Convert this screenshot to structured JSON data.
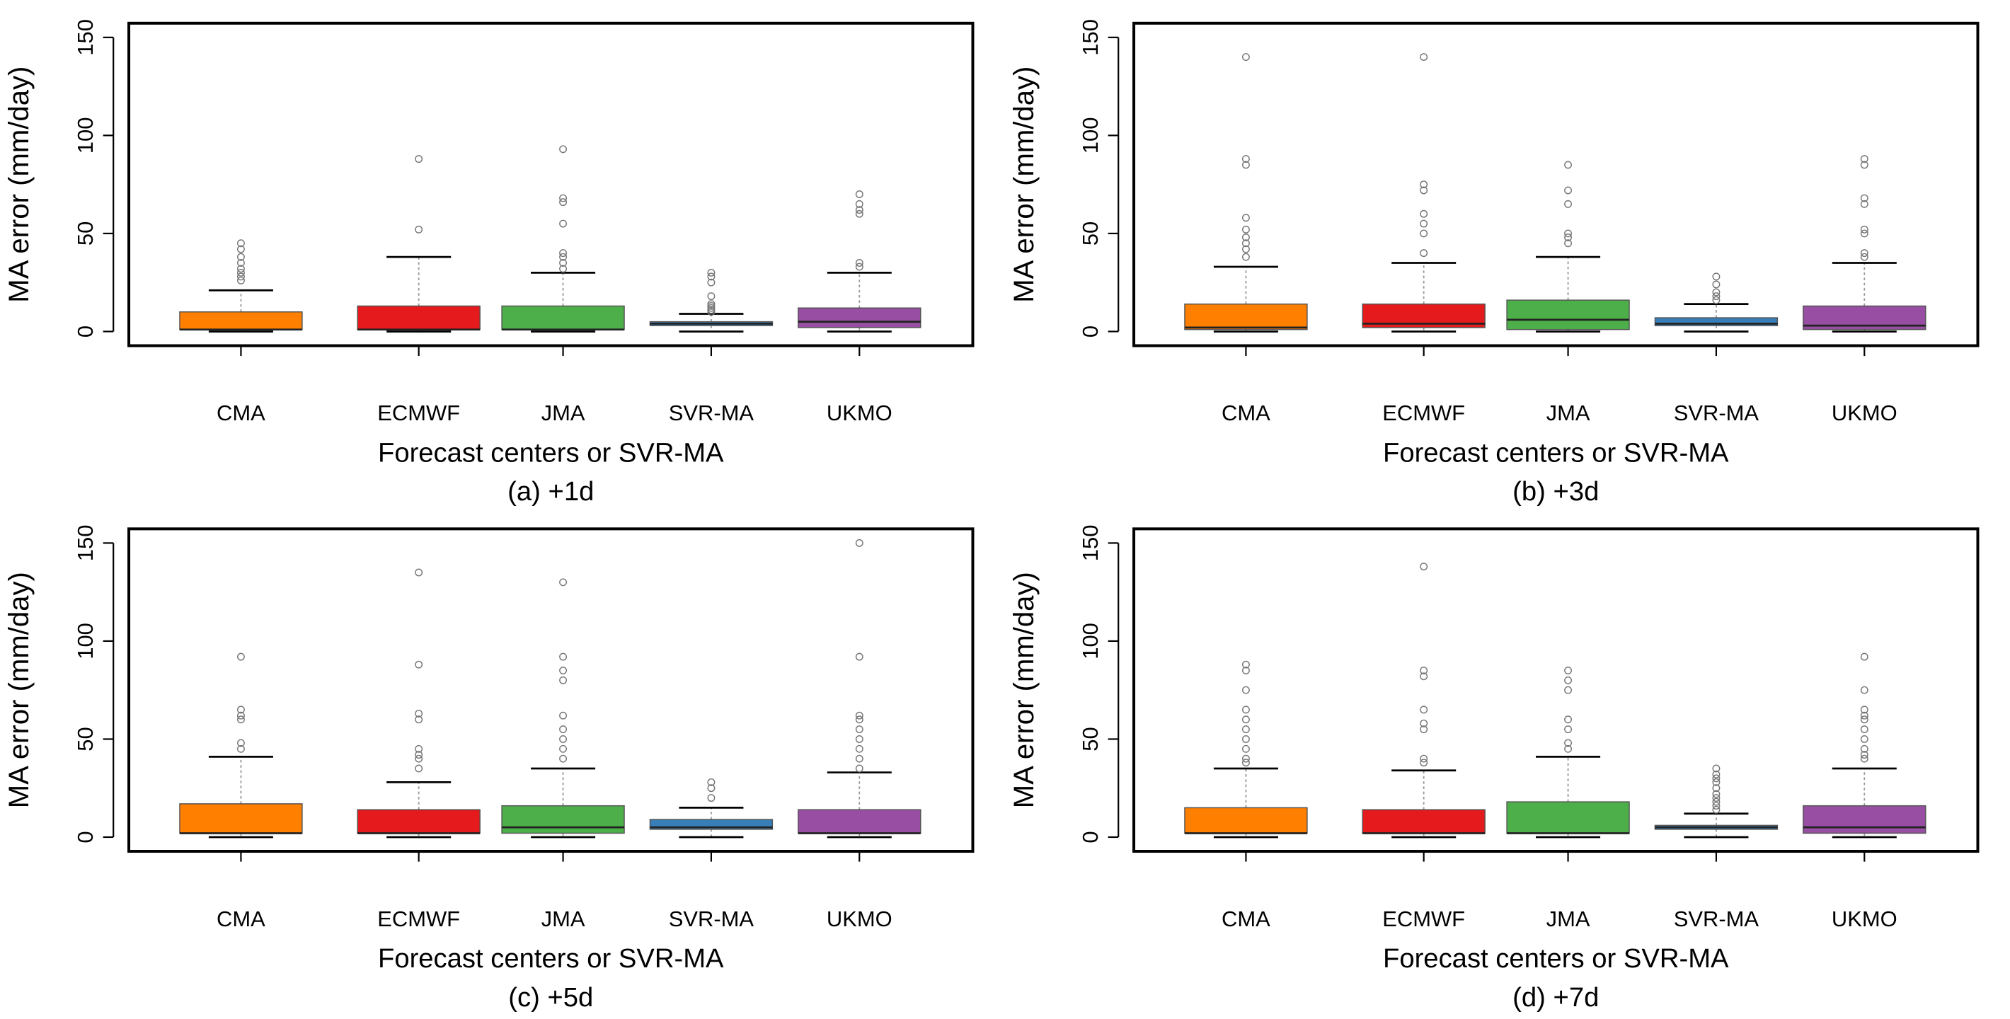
{
  "colors": {
    "CMA": "#FF7F00",
    "ECMWF": "#E41A1C",
    "JMA": "#4DAF4A",
    "SVR-MA": "#377EB8",
    "UKMO": "#984EA3"
  },
  "chart_data": [
    {
      "type": "box",
      "title": "(a) +1d",
      "xlabel": "Forecast centers or SVR-MA",
      "ylabel": "MA error (mm/day)",
      "ylim": [
        0,
        150
      ],
      "yticks": [
        "0",
        "50",
        "100",
        "150"
      ],
      "categories": [
        "CMA",
        "ECMWF",
        "JMA",
        "SVR-MA",
        "UKMO"
      ],
      "boxes": [
        {
          "low": 0,
          "q1": 1,
          "median": 1,
          "q3": 10,
          "high": 21,
          "outliers": [
            26,
            28,
            30,
            32,
            35,
            38,
            42,
            45
          ]
        },
        {
          "low": 0,
          "q1": 1,
          "median": 1,
          "q3": 13,
          "high": 38,
          "outliers": [
            52,
            88
          ]
        },
        {
          "low": 0,
          "q1": 1,
          "median": 1,
          "q3": 13,
          "high": 30,
          "outliers": [
            32,
            35,
            38,
            40,
            55,
            66,
            68,
            93
          ]
        },
        {
          "low": 0,
          "q1": 3,
          "median": 4,
          "q3": 5,
          "high": 9,
          "outliers": [
            10,
            11,
            12,
            13,
            14,
            18,
            25,
            28,
            30
          ]
        },
        {
          "low": 0,
          "q1": 2,
          "median": 5,
          "q3": 12,
          "high": 30,
          "outliers": [
            33,
            35,
            60,
            62,
            65,
            70
          ]
        }
      ]
    },
    {
      "type": "box",
      "title": "(b) +3d",
      "xlabel": "Forecast centers or SVR-MA",
      "ylabel": "MA error (mm/day)",
      "ylim": [
        0,
        150
      ],
      "yticks": [
        "0",
        "50",
        "100",
        "150"
      ],
      "categories": [
        "CMA",
        "ECMWF",
        "JMA",
        "SVR-MA",
        "UKMO"
      ],
      "boxes": [
        {
          "low": 0,
          "q1": 1,
          "median": 2,
          "q3": 14,
          "high": 33,
          "outliers": [
            38,
            42,
            45,
            48,
            52,
            58,
            85,
            88,
            140
          ]
        },
        {
          "low": 0,
          "q1": 2,
          "median": 4,
          "q3": 14,
          "high": 35,
          "outliers": [
            40,
            50,
            55,
            60,
            72,
            75,
            140
          ]
        },
        {
          "low": 0,
          "q1": 1,
          "median": 6,
          "q3": 16,
          "high": 38,
          "outliers": [
            45,
            48,
            50,
            65,
            72,
            85
          ]
        },
        {
          "low": 0,
          "q1": 3,
          "median": 4,
          "q3": 7,
          "high": 14,
          "outliers": [
            16,
            18,
            20,
            24,
            28
          ]
        },
        {
          "low": 0,
          "q1": 1,
          "median": 3,
          "q3": 13,
          "high": 35,
          "outliers": [
            38,
            40,
            50,
            52,
            65,
            68,
            85,
            88
          ]
        }
      ]
    },
    {
      "type": "box",
      "title": "(c) +5d",
      "xlabel": "Forecast centers or SVR-MA",
      "ylabel": "MA error (mm/day)",
      "ylim": [
        0,
        150
      ],
      "yticks": [
        "0",
        "50",
        "100",
        "150"
      ],
      "categories": [
        "CMA",
        "ECMWF",
        "JMA",
        "SVR-MA",
        "UKMO"
      ],
      "boxes": [
        {
          "low": 0,
          "q1": 2,
          "median": 2,
          "q3": 17,
          "high": 41,
          "outliers": [
            45,
            48,
            60,
            62,
            65,
            92
          ]
        },
        {
          "low": 0,
          "q1": 2,
          "median": 2,
          "q3": 14,
          "high": 28,
          "outliers": [
            35,
            40,
            42,
            45,
            60,
            63,
            88,
            135
          ]
        },
        {
          "low": 0,
          "q1": 2,
          "median": 5,
          "q3": 16,
          "high": 35,
          "outliers": [
            40,
            45,
            50,
            55,
            62,
            80,
            85,
            92,
            130
          ]
        },
        {
          "low": 0,
          "q1": 4,
          "median": 5,
          "q3": 9,
          "high": 15,
          "outliers": [
            20,
            25,
            28
          ]
        },
        {
          "low": 0,
          "q1": 2,
          "median": 2,
          "q3": 14,
          "high": 33,
          "outliers": [
            35,
            40,
            45,
            50,
            55,
            60,
            62,
            92,
            150
          ]
        }
      ]
    },
    {
      "type": "box",
      "title": "(d) +7d",
      "xlabel": "Forecast centers or SVR-MA",
      "ylabel": "MA error (mm/day)",
      "ylim": [
        0,
        150
      ],
      "yticks": [
        "0",
        "50",
        "100",
        "150"
      ],
      "categories": [
        "CMA",
        "ECMWF",
        "JMA",
        "SVR-MA",
        "UKMO"
      ],
      "boxes": [
        {
          "low": 0,
          "q1": 2,
          "median": 2,
          "q3": 15,
          "high": 35,
          "outliers": [
            38,
            40,
            45,
            50,
            55,
            60,
            65,
            75,
            85,
            88
          ]
        },
        {
          "low": 0,
          "q1": 2,
          "median": 2,
          "q3": 14,
          "high": 34,
          "outliers": [
            38,
            40,
            55,
            58,
            65,
            82,
            85,
            138
          ]
        },
        {
          "low": 0,
          "q1": 2,
          "median": 2,
          "q3": 18,
          "high": 41,
          "outliers": [
            45,
            48,
            55,
            60,
            75,
            80,
            85
          ]
        },
        {
          "low": 0,
          "q1": 4,
          "median": 5,
          "q3": 6,
          "high": 12,
          "outliers": [
            14,
            16,
            18,
            20,
            22,
            25,
            28,
            30,
            32,
            35
          ]
        },
        {
          "low": 0,
          "q1": 2,
          "median": 5,
          "q3": 16,
          "high": 35,
          "outliers": [
            40,
            42,
            45,
            50,
            55,
            60,
            62,
            65,
            75,
            92
          ]
        }
      ]
    }
  ]
}
